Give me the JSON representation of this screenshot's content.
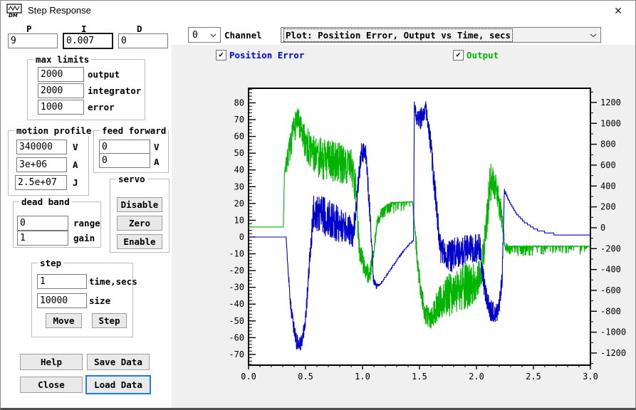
{
  "window": {
    "title": "Step Response",
    "close_glyph": "✕",
    "icon": "dm-logo"
  },
  "pid": {
    "p": {
      "label": "P",
      "value": "9"
    },
    "i": {
      "label": "I",
      "value": "0.007"
    },
    "d": {
      "label": "D",
      "value": "0"
    }
  },
  "channel": {
    "value": "0",
    "label": "Channel"
  },
  "plot_select": {
    "value": "Plot: Position Error, Output vs Time, secs"
  },
  "checkboxes": {
    "position_error": {
      "label": "Position Error",
      "checked": true,
      "color": "#0000ee",
      "glyph": "✔"
    },
    "output": {
      "label": "Output",
      "checked": true,
      "color": "#00bb00",
      "glyph": "✔"
    }
  },
  "groups": {
    "max_limits": {
      "title": "max limits",
      "fields": [
        {
          "value": "2000",
          "label": "output"
        },
        {
          "value": "2000",
          "label": "integrator"
        },
        {
          "value": "1000",
          "label": "error"
        }
      ]
    },
    "motion_profile": {
      "title": "motion profile",
      "fields": [
        {
          "value": "340000",
          "label": "V"
        },
        {
          "value": "3e+06",
          "label": "A"
        },
        {
          "value": "2.5e+07",
          "label": "J"
        }
      ]
    },
    "feed_forward": {
      "title": "feed forward",
      "fields": [
        {
          "value": "0",
          "label": "V"
        },
        {
          "value": "0",
          "label": "A"
        }
      ]
    },
    "servo": {
      "title": "servo",
      "buttons": [
        {
          "label": "Disable"
        },
        {
          "label": "Zero"
        },
        {
          "label": "Enable"
        }
      ]
    },
    "dead_band": {
      "title": "dead band",
      "fields": [
        {
          "value": "0",
          "label": "range"
        },
        {
          "value": "1",
          "label": "gain"
        }
      ]
    },
    "step": {
      "title": "step",
      "fields": [
        {
          "value": "1",
          "label": "time,secs"
        },
        {
          "value": "10000",
          "label": "size"
        }
      ],
      "buttons": [
        {
          "label": "Move"
        },
        {
          "label": "Step"
        }
      ]
    }
  },
  "bottom_buttons": {
    "help": "Help",
    "save_data": "Save Data",
    "close": "Close",
    "load_data": "Load Data"
  },
  "chart_data": {
    "type": "line",
    "title": "Position Error, Output vs Time",
    "xlabel": "Time, secs",
    "xlim": [
      0,
      3
    ],
    "ylim_left": [
      -76.4,
      88.7
    ],
    "ylim_right": [
      -1316,
      1336
    ],
    "grid": false,
    "x_ticks": {
      "values": [
        0,
        0.5,
        1.0,
        1.5,
        2.0,
        2.5,
        3.0
      ],
      "labels": [
        "0.0",
        "0.5",
        "1.0",
        "1.5",
        "2.0",
        "2.5",
        "3.0"
      ],
      "minor_step": 0.1
    },
    "left_ticks": {
      "values": [
        80,
        70,
        60,
        50,
        40,
        30,
        20,
        10,
        0,
        -10,
        -20,
        -30,
        -40,
        -50,
        -60,
        -70
      ],
      "labels": [
        "80",
        "70",
        "60",
        "50",
        "40",
        "30",
        "20",
        "10",
        "0",
        "-10",
        "-20",
        "-30",
        "-40",
        "-50",
        "-60",
        "-70"
      ],
      "minor_step": 2
    },
    "right_ticks": {
      "values": [
        1200,
        1000,
        800,
        600,
        400,
        200,
        0,
        -200,
        -400,
        -600,
        -800,
        -1000,
        -1200
      ],
      "labels": [
        "1200",
        "1000",
        "800",
        "600",
        "400",
        "200",
        "0",
        "-200",
        "-400",
        "-600",
        "-800",
        "-1000",
        "-1200"
      ],
      "minor_step": 100
    },
    "series": [
      {
        "name": "Output",
        "color": "#00b400",
        "axis": "left",
        "seed": 7,
        "keypoints": [
          [
            0.0,
            5.5,
            0,
            0,
            1
          ],
          [
            0.305,
            5.5,
            0,
            0,
            1
          ],
          [
            0.315,
            38,
            1,
            1,
            1
          ],
          [
            0.34,
            45,
            6,
            8,
            1
          ],
          [
            0.42,
            70,
            9,
            10,
            1
          ],
          [
            0.47,
            62,
            10,
            8,
            1
          ],
          [
            0.52,
            55,
            12,
            10,
            1
          ],
          [
            0.6,
            50,
            15,
            10,
            1
          ],
          [
            0.75,
            47,
            15,
            11,
            1
          ],
          [
            0.9,
            44,
            13,
            9,
            1
          ],
          [
            0.94,
            30,
            10,
            8,
            1
          ],
          [
            0.97,
            -5,
            8,
            6,
            1
          ],
          [
            1.02,
            -18,
            8,
            6,
            1
          ],
          [
            1.06,
            -23,
            7,
            5,
            1
          ],
          [
            1.09,
            -12,
            5,
            4,
            1
          ],
          [
            1.13,
            10,
            4,
            2,
            1
          ],
          [
            1.17,
            17,
            6,
            1,
            0.5
          ],
          [
            1.25,
            20.5,
            7,
            0.5,
            0.14
          ],
          [
            1.44,
            21,
            6,
            0.5,
            0.14
          ],
          [
            1.465,
            0,
            5,
            4,
            1
          ],
          [
            1.5,
            -25,
            8,
            6,
            1
          ],
          [
            1.55,
            -45,
            7,
            5,
            1
          ],
          [
            1.6,
            -48,
            7,
            6,
            1
          ],
          [
            1.66,
            -40,
            10,
            9,
            1
          ],
          [
            1.75,
            -34,
            14,
            12,
            1
          ],
          [
            1.9,
            -29,
            15,
            13,
            1
          ],
          [
            2.03,
            -24,
            13,
            11,
            1
          ],
          [
            2.07,
            -5,
            10,
            10,
            1
          ],
          [
            2.12,
            30,
            10,
            14,
            1
          ],
          [
            2.16,
            33,
            10,
            10,
            1
          ],
          [
            2.21,
            18,
            9,
            8,
            1
          ],
          [
            2.25,
            -4,
            4,
            3,
            1
          ],
          [
            2.285,
            -5.5,
            6,
            0.5,
            0.35
          ],
          [
            2.45,
            -5.5,
            6,
            0.4,
            0.18
          ],
          [
            2.62,
            -5.5,
            5,
            0.3,
            0.12
          ],
          [
            2.9,
            -5.5,
            6,
            0.3,
            0.1
          ],
          [
            2.955,
            -5.5,
            7,
            0.5,
            0.5
          ],
          [
            2.97,
            -5.5,
            1,
            0.3,
            0.1
          ],
          [
            3.0,
            -5.5,
            0.2,
            0.2,
            1
          ]
        ]
      },
      {
        "name": "Position Error",
        "color": "#0000cd",
        "axis": "left",
        "seed": 13,
        "keypoints": [
          [
            0.0,
            0,
            0,
            0,
            1
          ],
          [
            0.33,
            0,
            0,
            0,
            1
          ],
          [
            0.345,
            -18,
            2,
            2,
            1
          ],
          [
            0.375,
            -45,
            5,
            4,
            1
          ],
          [
            0.42,
            -61,
            6,
            4,
            1
          ],
          [
            0.44,
            -64,
            6,
            4,
            1
          ],
          [
            0.465,
            -62,
            5,
            4,
            1
          ],
          [
            0.5,
            -50,
            5,
            5,
            1
          ],
          [
            0.535,
            -15,
            5,
            6,
            1
          ],
          [
            0.57,
            14,
            9,
            11,
            1
          ],
          [
            0.65,
            13,
            12,
            12,
            1
          ],
          [
            0.8,
            8,
            12,
            10,
            1
          ],
          [
            0.92,
            3,
            9,
            8,
            1
          ],
          [
            0.95,
            22,
            6,
            7,
            1
          ],
          [
            0.99,
            50,
            5,
            7,
            1
          ],
          [
            1.03,
            50,
            6,
            5,
            1
          ],
          [
            1.065,
            15,
            6,
            5,
            1
          ],
          [
            1.095,
            -24,
            4,
            3,
            1
          ],
          [
            1.12,
            -29.5,
            1.5,
            1.5,
            1
          ],
          [
            1.16,
            -28,
            0.4,
            0.4,
            1
          ],
          [
            1.24,
            -20,
            0.4,
            0.4,
            1
          ],
          [
            1.32,
            -12,
            0.4,
            0.4,
            1
          ],
          [
            1.4,
            -5,
            0.4,
            0.4,
            1
          ],
          [
            1.448,
            -2,
            0.2,
            0.2,
            1
          ],
          [
            1.455,
            79,
            1,
            3,
            1
          ],
          [
            1.475,
            70,
            4,
            5,
            1
          ],
          [
            1.51,
            69,
            5,
            8,
            1
          ],
          [
            1.555,
            76,
            4,
            5,
            1
          ],
          [
            1.59,
            62,
            7,
            6,
            1
          ],
          [
            1.64,
            25,
            8,
            8,
            1
          ],
          [
            1.685,
            -8,
            8,
            8,
            1
          ],
          [
            1.78,
            -11,
            10,
            10,
            1
          ],
          [
            1.92,
            -7,
            10,
            9,
            1
          ],
          [
            2.03,
            -6,
            9,
            8,
            1
          ],
          [
            2.07,
            -30,
            7,
            6,
            1
          ],
          [
            2.12,
            -43,
            7,
            6,
            1
          ],
          [
            2.19,
            -45,
            7,
            5,
            1
          ],
          [
            2.225,
            -25,
            5,
            5,
            1
          ],
          [
            2.245,
            27,
            1,
            2,
            1
          ],
          [
            2.29,
            21,
            0.3,
            0.3,
            1
          ],
          [
            2.35,
            14,
            0,
            0,
            1
          ],
          [
            2.42,
            9,
            0,
            0,
            1
          ],
          [
            2.52,
            4.5,
            0,
            0,
            1
          ],
          [
            2.65,
            2,
            0,
            0,
            1
          ],
          [
            2.8,
            1,
            0,
            0,
            1
          ],
          [
            3.0,
            0.8,
            0,
            0,
            1
          ]
        ]
      }
    ]
  }
}
